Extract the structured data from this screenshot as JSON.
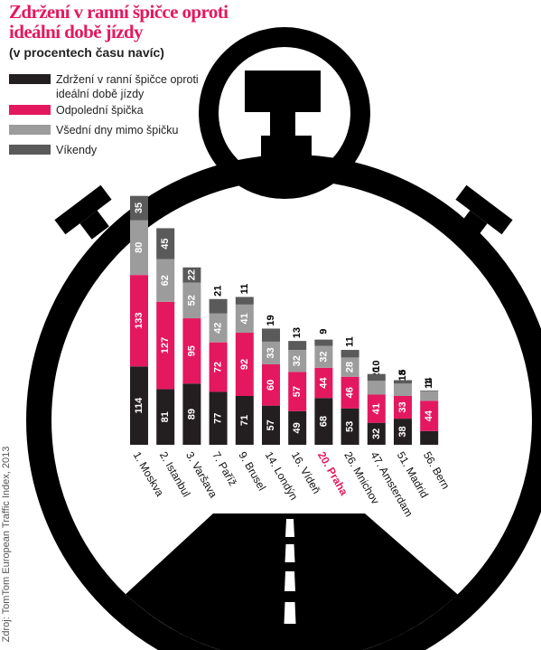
{
  "title_lines": [
    "Zdržení v ranní špičce oproti",
    "ideální době jízdy"
  ],
  "subtitle": "(v procentech času navíc)",
  "source": "Zdroj: TomTom European Traffic Index, 2013",
  "colors": {
    "morning": "#231f20",
    "afternoon": "#e4185f",
    "weekday": "#9d9c9c",
    "weekend": "#5a5a5b",
    "highlight": "#e4185f",
    "watch": "#000000"
  },
  "chart_data": {
    "type": "bar",
    "stacked": true,
    "categories": [
      "1. Moskva",
      "2. Istanbul",
      "3. Varšava",
      "7. Paříž",
      "9. Brusel",
      "14. Londýn",
      "16. Vídeň",
      "20. Praha",
      "26. Mnichov",
      "47. Amsterdam",
      "51. Madrid",
      "56. Bern"
    ],
    "highlight_category": "20. Praha",
    "series": [
      {
        "name": "Zdržení v ranní špičce oproti ideální době jízdy",
        "color_key": "morning",
        "values": [
          114,
          81,
          89,
          77,
          71,
          57,
          49,
          68,
          53,
          32,
          38,
          20
        ]
      },
      {
        "name": "Odpolední špička",
        "color_key": "afternoon",
        "values": [
          133,
          127,
          95,
          72,
          92,
          60,
          57,
          44,
          46,
          41,
          33,
          44
        ]
      },
      {
        "name": "Všední dny mimo špičku",
        "color_key": "weekday",
        "values": [
          80,
          62,
          52,
          42,
          41,
          33,
          32,
          32,
          28,
          20,
          18,
          14
        ]
      },
      {
        "name": "Víkendy",
        "color_key": "weekend",
        "values": [
          35,
          45,
          22,
          21,
          11,
          19,
          13,
          9,
          11,
          10,
          5,
          1
        ]
      }
    ]
  }
}
